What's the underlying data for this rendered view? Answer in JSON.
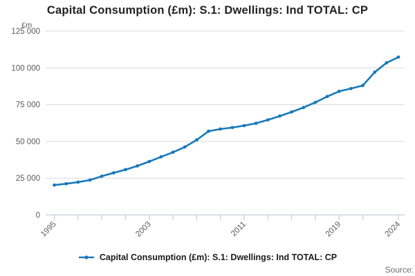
{
  "chart": {
    "title": "Capital Consumption (£m): S.1: Dwellings: Ind TOTAL: CP",
    "unit_label": "£m",
    "legend_label": "Capital Consumption (£m): S.1: Dwellings: Ind TOTAL: CP",
    "source_label": "Source:",
    "colors": {
      "line": "#1779ba",
      "marker": "#1779ba",
      "gridline": "#d9d9d9",
      "axis": "#c3cbd9",
      "tick": "#c3cbd9",
      "tick_label": "#595959"
    }
  },
  "chart_data": {
    "type": "line",
    "title": "Capital Consumption (£m): S.1: Dwellings: Ind TOTAL: CP",
    "xlabel": "",
    "ylabel": "£m",
    "x": [
      1995,
      1996,
      1997,
      1998,
      1999,
      2000,
      2001,
      2002,
      2003,
      2004,
      2005,
      2006,
      2007,
      2008,
      2009,
      2010,
      2011,
      2012,
      2013,
      2014,
      2015,
      2016,
      2017,
      2018,
      2019,
      2020,
      2021,
      2022,
      2023,
      2024
    ],
    "values": [
      20300,
      21200,
      22300,
      23700,
      26300,
      28600,
      30800,
      33300,
      36300,
      39500,
      42600,
      46200,
      51000,
      56900,
      58400,
      59400,
      60700,
      62300,
      64600,
      67200,
      70000,
      73000,
      76500,
      80500,
      84000,
      85900,
      88000,
      97000,
      103400,
      107300
    ],
    "series": [
      {
        "name": "Capital Consumption (£m): S.1: Dwellings: Ind TOTAL: CP",
        "values": [
          20300,
          21200,
          22300,
          23700,
          26300,
          28600,
          30800,
          33300,
          36300,
          39500,
          42600,
          46200,
          51000,
          56900,
          58400,
          59400,
          60700,
          62300,
          64600,
          67200,
          70000,
          73000,
          76500,
          80500,
          84000,
          85900,
          88000,
          97000,
          103400,
          107300
        ]
      }
    ],
    "xlim": [
      1995,
      2024
    ],
    "ylim": [
      0,
      125000
    ],
    "y_tick_values": [
      0,
      25000,
      50000,
      75000,
      100000,
      125000
    ],
    "y_tick_labels": [
      "0",
      "25 000",
      "50 000",
      "75 000",
      "100 000",
      "125 000"
    ],
    "x_tick_years": [
      1995,
      1997,
      1999,
      2001,
      2003,
      2005,
      2007,
      2009,
      2011,
      2013,
      2015,
      2017,
      2019,
      2021,
      2024
    ],
    "x_label_years": [
      "1995",
      "2003",
      "2011",
      "2019",
      "2024"
    ],
    "x_label_year_values": [
      1995,
      2003,
      2011,
      2019,
      2024
    ],
    "grid": true,
    "legend_position": "bottom"
  }
}
